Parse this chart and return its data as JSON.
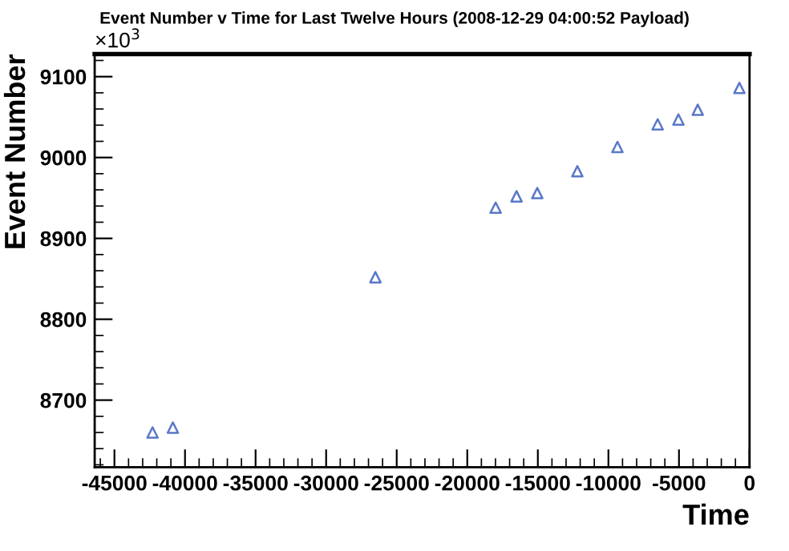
{
  "chart_data": {
    "type": "scatter",
    "title": "Event Number v Time for Last Twelve Hours (2008-12-29 04:00:52 Payload)",
    "xlabel": "Time",
    "ylabel": "Event Number",
    "annotations": [
      "×10$^{3}$"
    ],
    "x": [
      -42300,
      -40860,
      -26510,
      -17990,
      -16510,
      -15040,
      -12200,
      -9360,
      -6510,
      -5040,
      -3670,
      -720
    ],
    "series": [
      {
        "color": "#5a78c8",
        "values": [
          8660,
          8666,
          8852,
          8938,
          8952,
          8956,
          8983,
          9013,
          9041,
          9047,
          9059,
          9086
        ]
      }
    ],
    "xlim": [
      -46400,
      0
    ],
    "ylim": [
      8617,
      9128
    ],
    "xticks": [
      -45000,
      -40000,
      -35000,
      -30000,
      -25000,
      -20000,
      -15000,
      -10000,
      -5000,
      0
    ],
    "yticks": [
      8700,
      8800,
      8900,
      9000,
      9100
    ],
    "marker": "triangle",
    "grid": false,
    "legend": false
  }
}
